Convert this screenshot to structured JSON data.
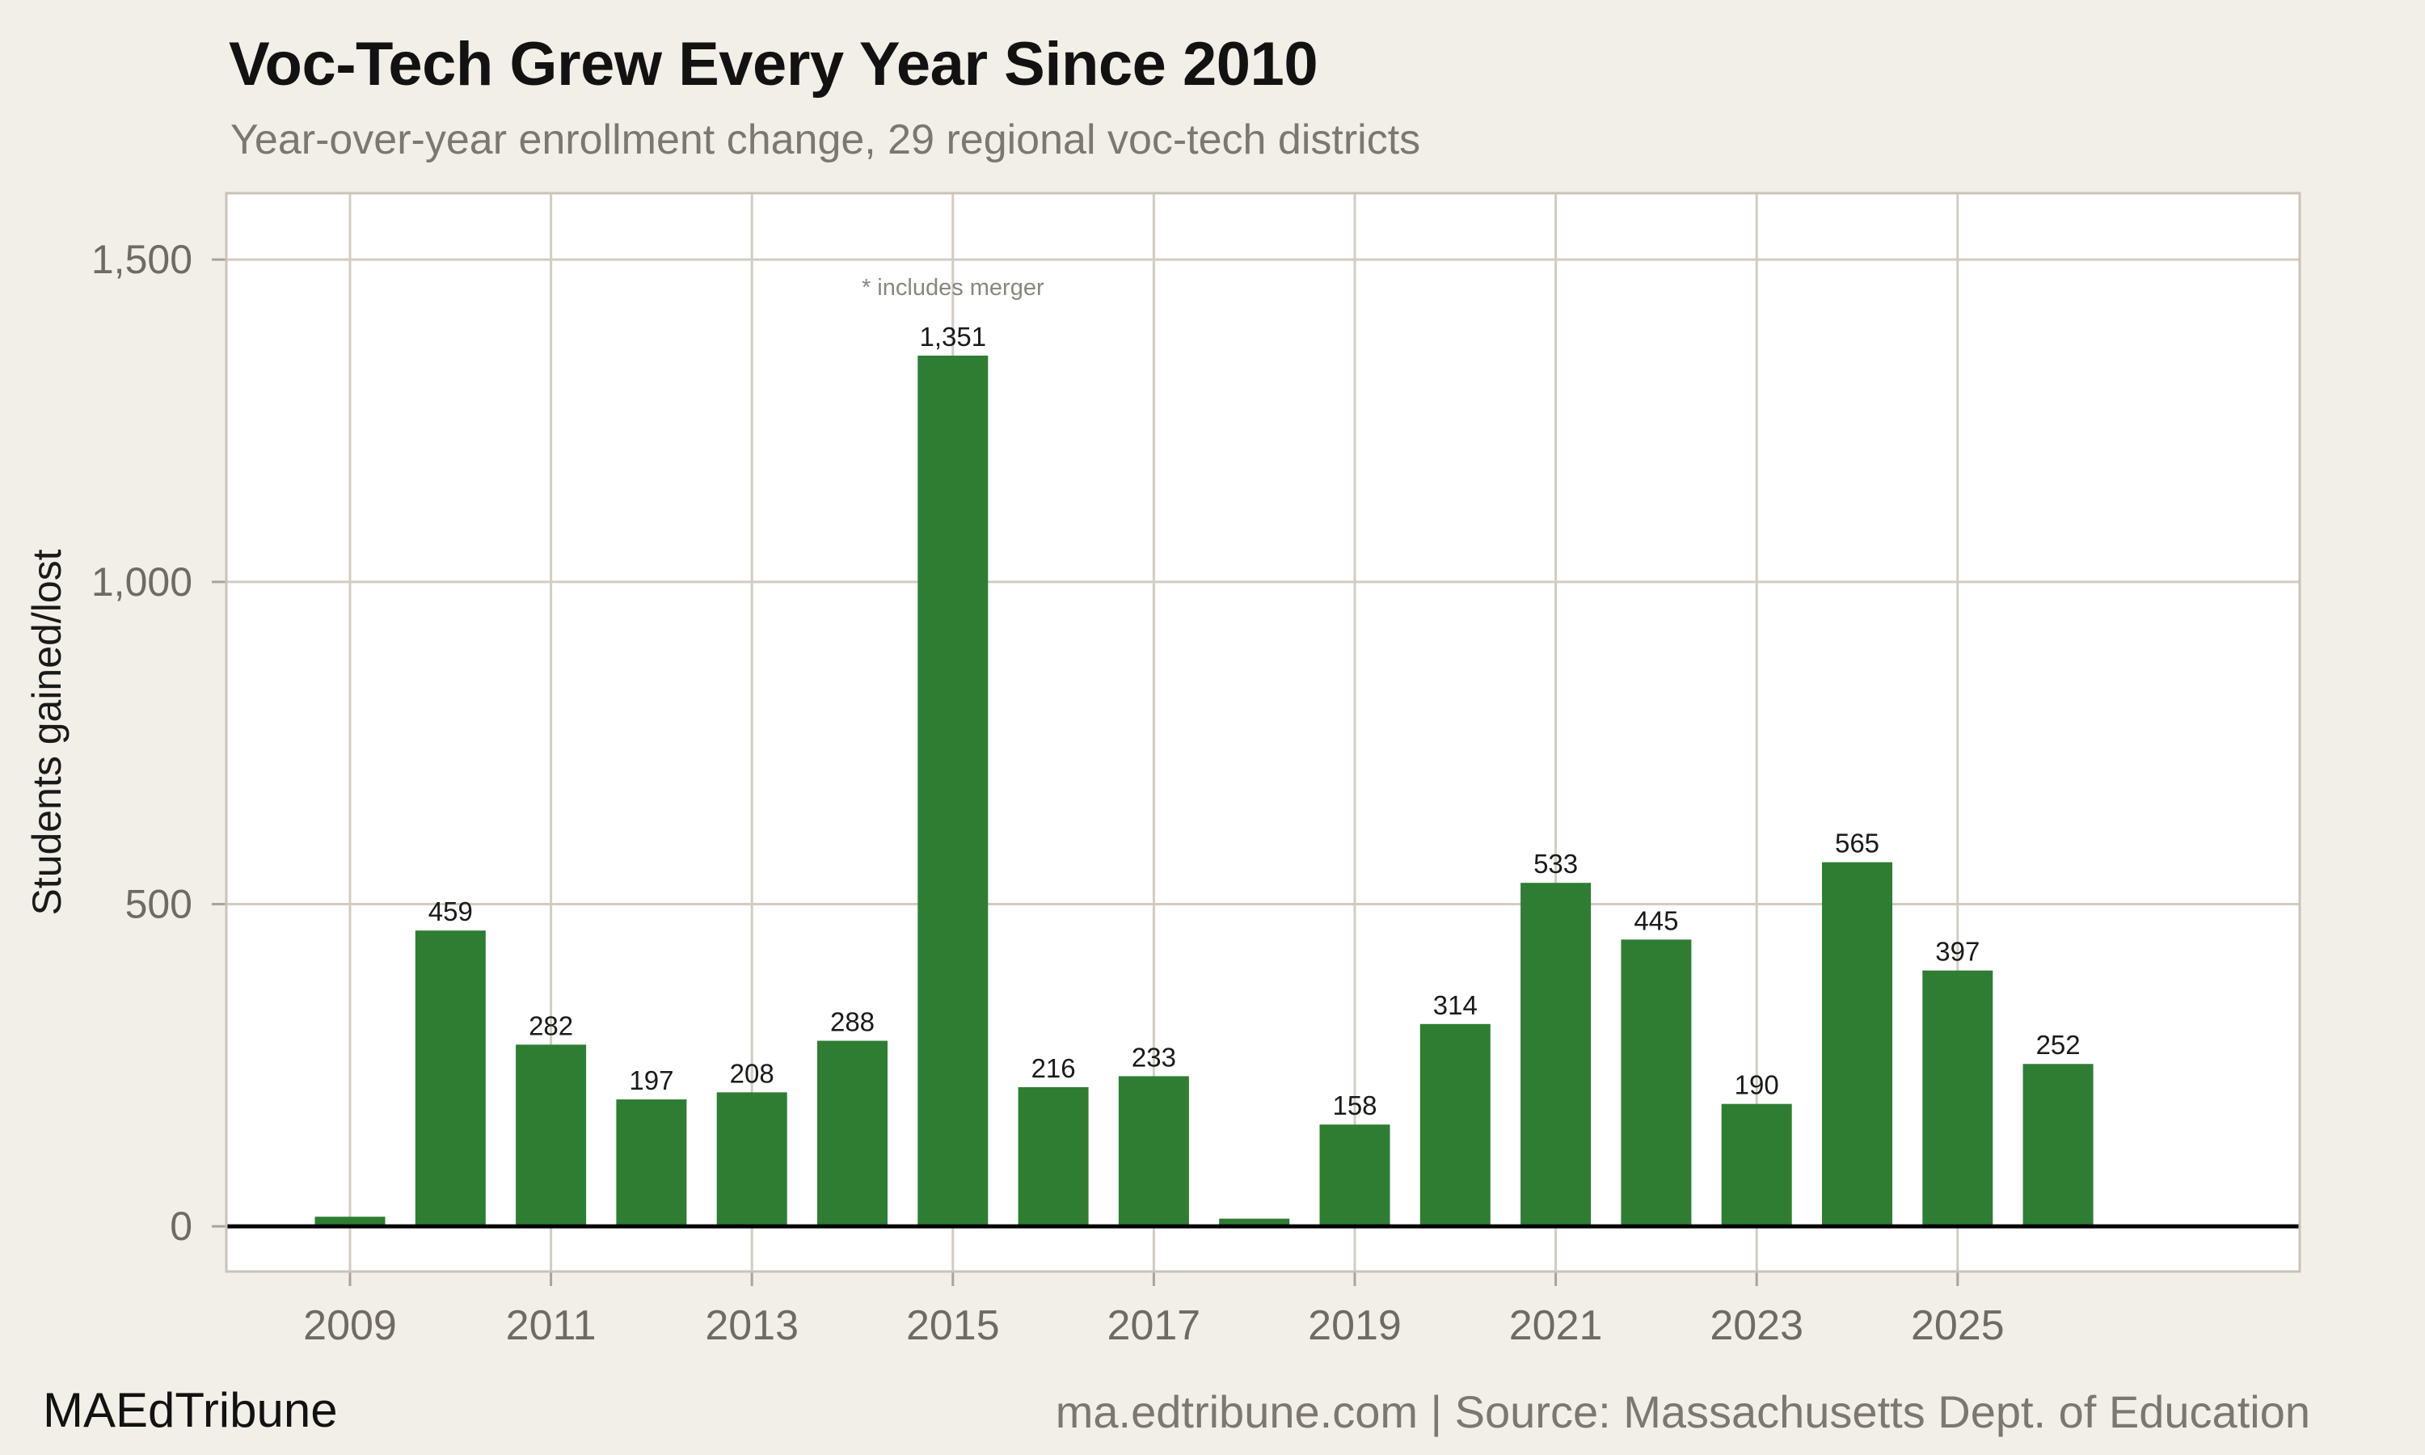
{
  "header": {
    "title": "Voc-Tech Grew Every Year Since 2010",
    "subtitle": "Year-over-year enrollment change, 29 regional voc-tech districts"
  },
  "footer": {
    "brand": "MAEdTribune",
    "source": "ma.edtribune.com | Source: Massachusetts Dept. of Education"
  },
  "chart_data": {
    "type": "bar",
    "title": "Voc-Tech Grew Every Year Since 2010",
    "xlabel": "",
    "ylabel": "Students gained/lost",
    "x": [
      2009,
      2010,
      2011,
      2012,
      2013,
      2014,
      2015,
      2016,
      2017,
      2018,
      2019,
      2020,
      2021,
      2022,
      2023,
      2024,
      2025,
      2026
    ],
    "values": [
      15,
      459,
      282,
      197,
      208,
      288,
      1351,
      216,
      233,
      12,
      158,
      314,
      533,
      445,
      190,
      565,
      397,
      252
    ],
    "bar_labels": [
      "",
      "459",
      "282",
      "197",
      "208",
      "288",
      "1,351",
      "216",
      "233",
      "",
      "158",
      "314",
      "533",
      "445",
      "190",
      "565",
      "397",
      "252"
    ],
    "annotation": {
      "text": "* includes merger",
      "year": 2015
    },
    "x_ticks": [
      2009,
      2011,
      2013,
      2015,
      2017,
      2019,
      2021,
      2023,
      2025
    ],
    "y_ticks": [
      {
        "value": 0,
        "label": "0"
      },
      {
        "value": 500,
        "label": "500"
      },
      {
        "value": 1000,
        "label": "1,000"
      },
      {
        "value": 1500,
        "label": "1,500"
      }
    ],
    "ylim": [
      -70,
      1603
    ],
    "grid": true,
    "legend": "none",
    "colors": {
      "bar": "#2E7D33",
      "background": "#F2EFE8",
      "plot_background": "#FFFFFF",
      "gridline": "#D2CCC2",
      "plot_border": "#C9C3B9",
      "tick": "#A9A49B",
      "tick_label": "#6F6B64",
      "data_label": "#1A1A1A",
      "annotation": "#8A867E",
      "zero_line": "#000000"
    }
  }
}
